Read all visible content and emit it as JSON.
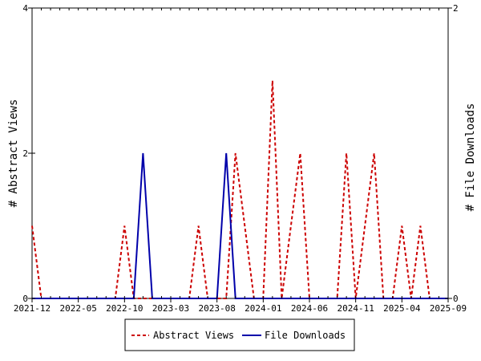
{
  "chart_data": {
    "type": "line",
    "x": [
      "2021-12",
      "2022-01",
      "2022-02",
      "2022-03",
      "2022-04",
      "2022-05",
      "2022-06",
      "2022-07",
      "2022-08",
      "2022-09",
      "2022-10",
      "2022-11",
      "2022-12",
      "2023-01",
      "2023-02",
      "2023-03",
      "2023-04",
      "2023-05",
      "2023-06",
      "2023-07",
      "2023-08",
      "2023-09",
      "2023-10",
      "2023-11",
      "2023-12",
      "2024-01",
      "2024-02",
      "2024-03",
      "2024-04",
      "2024-05",
      "2024-06",
      "2024-07",
      "2024-08",
      "2024-09",
      "2024-10",
      "2024-11",
      "2024-12",
      "2025-01",
      "2025-02",
      "2025-03",
      "2025-04",
      "2025-05",
      "2025-06",
      "2025-07",
      "2025-08",
      "2025-09"
    ],
    "x_tick_labels": [
      "2021-12",
      "2022-05",
      "2022-10",
      "2023-03",
      "2023-08",
      "2024-01",
      "2024-06",
      "2024-11",
      "2025-04",
      "2025-09"
    ],
    "series": [
      {
        "name": "Abstract Views",
        "axis": "left",
        "color": "#cc0000",
        "style": "dashed",
        "values": [
          1,
          0,
          0,
          0,
          0,
          0,
          0,
          0,
          0,
          0,
          1,
          0,
          0,
          0,
          0,
          0,
          0,
          0,
          1,
          0,
          0,
          0,
          2,
          1,
          0,
          0,
          3,
          0,
          1,
          2,
          0,
          0,
          0,
          0,
          2,
          0,
          1,
          2,
          0,
          0,
          1,
          0,
          1,
          0,
          0,
          0
        ]
      },
      {
        "name": "File Downloads",
        "axis": "right",
        "color": "#0000aa",
        "style": "solid",
        "values": [
          0,
          0,
          0,
          0,
          0,
          0,
          0,
          0,
          0,
          0,
          0,
          0,
          1,
          0,
          0,
          0,
          0,
          0,
          0,
          0,
          0,
          1,
          0,
          0,
          0,
          0,
          0,
          0,
          0,
          0,
          0,
          0,
          0,
          0,
          0,
          0,
          0,
          0,
          0,
          0,
          0,
          0,
          0,
          0,
          0,
          0
        ]
      }
    ],
    "ylabel_left": "# Abstract Views",
    "ylabel_right": "# File Downloads",
    "ylim_left": [
      0,
      4
    ],
    "ylim_right": [
      0,
      2
    ],
    "yticks_left": [
      0,
      2,
      4
    ],
    "yticks_right": [
      0,
      2
    ],
    "grid": false,
    "legend_position": "bottom-center"
  }
}
